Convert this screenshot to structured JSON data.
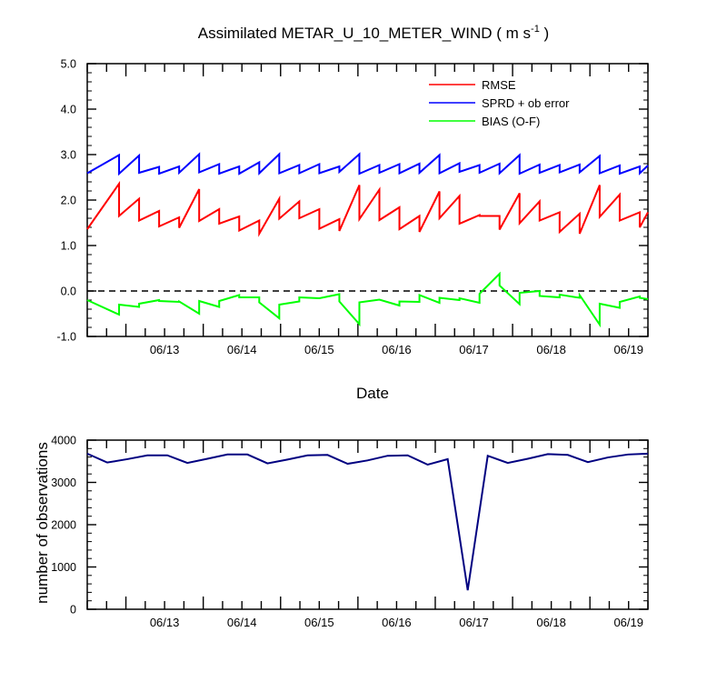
{
  "chart_data": [
    {
      "type": "line",
      "title": {
        "main": "Assimilated METAR_U_10_METER_WIND",
        "unit_prefix": "( m s",
        "unit_exp": "-1",
        "unit_suffix": " )"
      },
      "xlabel": "Date",
      "ylabel": "",
      "xlim": [
        "06/12 12:00",
        "06/19 18:00"
      ],
      "ylim": [
        -1.0,
        5.0
      ],
      "y_ticks": [
        "-1.0",
        "0.0",
        "1.0",
        "2.0",
        "3.0",
        "4.0",
        "5.0"
      ],
      "x_tick_labels": [
        "06/13",
        "06/14",
        "06/15",
        "06/16",
        "06/17",
        "06/18",
        "06/19"
      ],
      "zero_line": "dashed",
      "legend_placement": "top-right",
      "x_step": "6h",
      "series": [
        {
          "name": "RMSE",
          "color": "#ff0000",
          "segments": [
            [
              1.36,
              2.36
            ],
            [
              1.65,
              2.03
            ],
            [
              1.55,
              1.76
            ],
            [
              1.42,
              1.62
            ],
            [
              1.39,
              2.24
            ],
            [
              1.54,
              1.8
            ],
            [
              1.48,
              1.64
            ],
            [
              1.33,
              1.55
            ],
            [
              1.26,
              2.03
            ],
            [
              1.59,
              1.97
            ],
            [
              1.6,
              1.8
            ],
            [
              1.37,
              1.58
            ],
            [
              1.32,
              2.33
            ],
            [
              1.58,
              2.23
            ],
            [
              1.56,
              1.84
            ],
            [
              1.36,
              1.65
            ],
            [
              1.3,
              2.19
            ],
            [
              1.6,
              2.09
            ],
            [
              1.48,
              1.67
            ],
            [
              1.65,
              1.65
            ],
            [
              1.35,
              2.15
            ],
            [
              1.49,
              1.97
            ],
            [
              1.55,
              1.73
            ],
            [
              1.3,
              1.7
            ],
            [
              1.26,
              2.33
            ],
            [
              1.63,
              2.12
            ],
            [
              1.55,
              1.73
            ],
            [
              1.4,
              1.73
            ]
          ]
        },
        {
          "name": "SPRD + ob error",
          "color": "#0000ff",
          "segments": [
            [
              2.59,
              2.99
            ],
            [
              2.58,
              2.98
            ],
            [
              2.6,
              2.73
            ],
            [
              2.58,
              2.74
            ],
            [
              2.6,
              3.01
            ],
            [
              2.61,
              2.79
            ],
            [
              2.58,
              2.74
            ],
            [
              2.58,
              2.83
            ],
            [
              2.59,
              3.01
            ],
            [
              2.59,
              2.77
            ],
            [
              2.59,
              2.79
            ],
            [
              2.59,
              2.74
            ],
            [
              2.62,
              3.01
            ],
            [
              2.58,
              2.77
            ],
            [
              2.6,
              2.79
            ],
            [
              2.59,
              2.8
            ],
            [
              2.6,
              2.99
            ],
            [
              2.59,
              2.81
            ],
            [
              2.62,
              2.77
            ],
            [
              2.6,
              2.8
            ],
            [
              2.59,
              2.99
            ],
            [
              2.58,
              2.78
            ],
            [
              2.6,
              2.77
            ],
            [
              2.61,
              2.78
            ],
            [
              2.61,
              2.97
            ],
            [
              2.59,
              2.76
            ],
            [
              2.58,
              2.74
            ],
            [
              2.59,
              2.76
            ]
          ]
        },
        {
          "name": "BIAS (O-F)",
          "color": "#00ff00",
          "segments": [
            [
              -0.2,
              -0.52
            ],
            [
              -0.3,
              -0.35
            ],
            [
              -0.28,
              -0.2
            ],
            [
              -0.22,
              -0.24
            ],
            [
              -0.23,
              -0.5
            ],
            [
              -0.22,
              -0.35
            ],
            [
              -0.22,
              -0.09
            ],
            [
              -0.14,
              -0.14
            ],
            [
              -0.25,
              -0.6
            ],
            [
              -0.3,
              -0.23
            ],
            [
              -0.14,
              -0.16
            ],
            [
              -0.16,
              -0.07
            ],
            [
              -0.23,
              -0.73
            ],
            [
              -0.25,
              -0.19
            ],
            [
              -0.19,
              -0.32
            ],
            [
              -0.23,
              -0.24
            ],
            [
              -0.09,
              -0.26
            ],
            [
              -0.15,
              -0.2
            ],
            [
              -0.16,
              -0.26
            ],
            [
              -0.06,
              0.38
            ],
            [
              0.12,
              -0.29
            ],
            [
              -0.04,
              0.0
            ],
            [
              -0.11,
              -0.14
            ],
            [
              -0.08,
              -0.15
            ],
            [
              -0.09,
              -0.74
            ],
            [
              -0.28,
              -0.37
            ],
            [
              -0.24,
              -0.12
            ],
            [
              -0.15,
              -0.18
            ]
          ]
        }
      ]
    },
    {
      "type": "line",
      "title": "",
      "xlabel": "",
      "ylabel": "number of observations",
      "xlim": [
        "06/12 12:00",
        "06/19 18:00"
      ],
      "ylim": [
        0,
        4000
      ],
      "y_ticks": [
        "0",
        "1000",
        "2000",
        "3000",
        "4000"
      ],
      "x_tick_labels": [
        "06/13",
        "06/14",
        "06/15",
        "06/16",
        "06/17",
        "06/18",
        "06/19"
      ],
      "x_step": "6h",
      "series": [
        {
          "name": "",
          "color": "#000080",
          "values": [
            3680,
            3470,
            3550,
            3640,
            3640,
            3460,
            3560,
            3660,
            3660,
            3450,
            3540,
            3640,
            3650,
            3440,
            3520,
            3630,
            3640,
            3420,
            3550,
            450,
            3630,
            3460,
            3560,
            3670,
            3650,
            3480,
            3590,
            3660,
            3680
          ]
        }
      ]
    }
  ]
}
